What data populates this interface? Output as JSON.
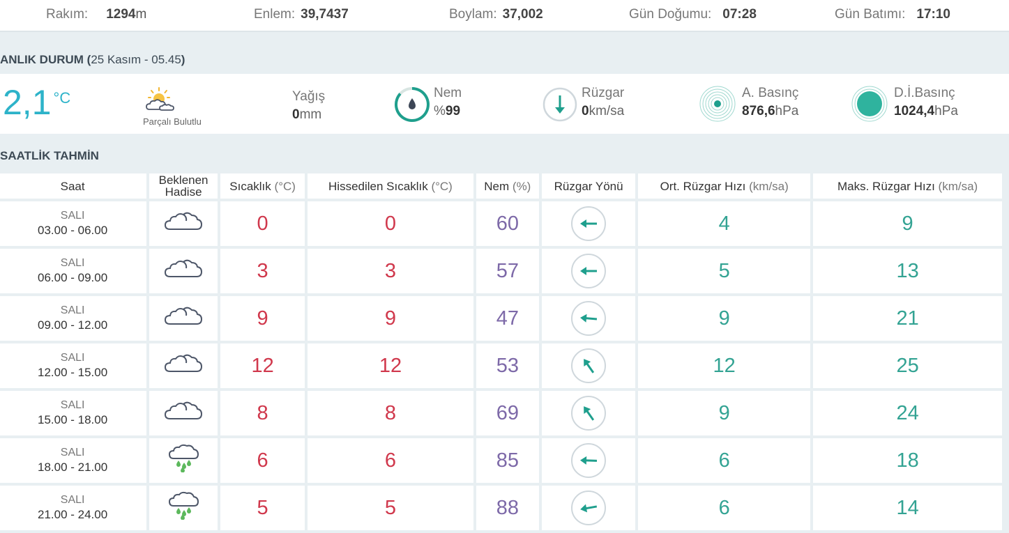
{
  "header": {
    "altitude_label": "Rakım:",
    "altitude_value": "1294",
    "altitude_unit": "m",
    "lat_label": "Enlem:",
    "lat_value": "39,7437",
    "lon_label": "Boylam:",
    "lon_value": "37,002",
    "sunrise_label": "Gün Doğumu:",
    "sunrise_value": "07:28",
    "sunset_label": "Gün Batımı:",
    "sunset_value": "17:10"
  },
  "current": {
    "title": "ANLIK DURUM (",
    "date": "25 Kasım - 05.45",
    "title_close": ")",
    "temperature": "2,1",
    "temp_unit": "°C",
    "condition": "Parçalı Bulutlu",
    "precip_label": "Yağış",
    "precip_value": "0",
    "precip_unit": "mm",
    "humidity_label": "Nem",
    "humidity_prefix": "%",
    "humidity_value": "99",
    "wind_label": "Rüzgar",
    "wind_value": "0",
    "wind_unit": "km/sa",
    "pressure_label": "A. Basınç",
    "pressure_value": "876,6",
    "pressure_unit": "hPa",
    "sea_pressure_label": "D.İ.Basınç",
    "sea_pressure_value": "1024,4",
    "sea_pressure_unit": "hPa"
  },
  "forecast": {
    "title": "SAATLİK TAHMİN",
    "headers": {
      "time": "Saat",
      "event_line1": "Beklenen",
      "event_line2": "Hadise",
      "temp": "Sıcaklık",
      "temp_unit": "(°C)",
      "feels": "Hissedilen Sıcaklık",
      "feels_unit": "(°C)",
      "humidity": "Nem",
      "humidity_unit": "(%)",
      "wind_dir": "Rüzgar Yönü",
      "avg_wind": "Ort. Rüzgar Hızı",
      "avg_wind_unit": "(km/sa)",
      "max_wind": "Maks. Rüzgar Hızı",
      "max_wind_unit": "(km/sa)"
    },
    "rows": [
      {
        "day": "SALI",
        "range": "03.00 - 06.00",
        "icon": "cloud-icon",
        "temp": "0",
        "feels": "0",
        "humidity": "60",
        "wind_dir_deg": 270,
        "avg": "4",
        "max": "9"
      },
      {
        "day": "SALI",
        "range": "06.00 - 09.00",
        "icon": "cloud-icon",
        "temp": "3",
        "feels": "3",
        "humidity": "57",
        "wind_dir_deg": 270,
        "avg": "5",
        "max": "13"
      },
      {
        "day": "SALI",
        "range": "09.00 - 12.00",
        "icon": "cloud-icon",
        "temp": "9",
        "feels": "9",
        "humidity": "47",
        "wind_dir_deg": 275,
        "avg": "9",
        "max": "21"
      },
      {
        "day": "SALI",
        "range": "12.00 - 15.00",
        "icon": "cloud-icon",
        "temp": "12",
        "feels": "12",
        "humidity": "53",
        "wind_dir_deg": 325,
        "avg": "12",
        "max": "25"
      },
      {
        "day": "SALI",
        "range": "15.00 - 18.00",
        "icon": "cloud-icon",
        "temp": "8",
        "feels": "8",
        "humidity": "69",
        "wind_dir_deg": 325,
        "avg": "9",
        "max": "24"
      },
      {
        "day": "SALI",
        "range": "18.00 - 21.00",
        "icon": "rain-cloud-icon",
        "temp": "6",
        "feels": "6",
        "humidity": "85",
        "wind_dir_deg": 272,
        "avg": "6",
        "max": "18"
      },
      {
        "day": "SALI",
        "range": "21.00 - 24.00",
        "icon": "rain-cloud-icon",
        "temp": "5",
        "feels": "5",
        "humidity": "88",
        "wind_dir_deg": 260,
        "avg": "6",
        "max": "14"
      }
    ]
  },
  "colors": {
    "temp": "#d0384c",
    "humidity": "#7d69a8",
    "wind": "#33a393",
    "accent": "#2db3c9"
  }
}
